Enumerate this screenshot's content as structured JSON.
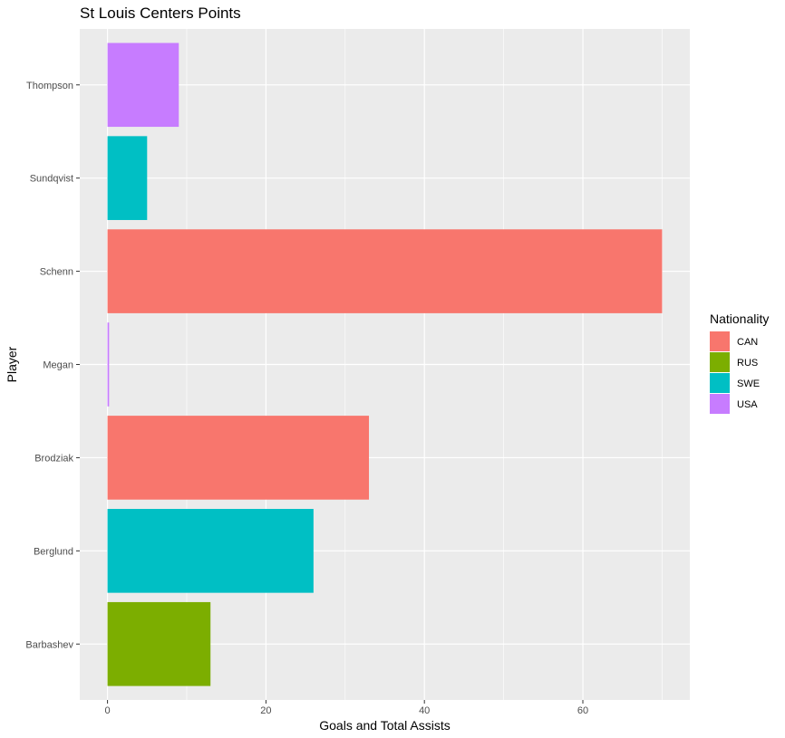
{
  "chart_data": {
    "type": "bar",
    "orientation": "horizontal",
    "title": "St Louis Centers Points",
    "xlabel": "Goals and Total Assists",
    "ylabel": "Player",
    "xlim": [
      -3.5,
      73.5
    ],
    "x_ticks": [
      0,
      20,
      40,
      60
    ],
    "grid": true,
    "legend_position": "right",
    "categories": [
      "Barbashev",
      "Berglund",
      "Brodziak",
      "Megan",
      "Schenn",
      "Sundqvist",
      "Thompson"
    ],
    "values": [
      13,
      26,
      33,
      0.2,
      70,
      5,
      9
    ],
    "groups": [
      "RUS",
      "SWE",
      "CAN",
      "USA",
      "CAN",
      "SWE",
      "USA"
    ],
    "legend": {
      "title": "Nationality",
      "entries": [
        {
          "label": "CAN",
          "color": "#F8766D"
        },
        {
          "label": "RUS",
          "color": "#7CAE00"
        },
        {
          "label": "SWE",
          "color": "#00BFC4"
        },
        {
          "label": "USA",
          "color": "#C77CFF"
        }
      ]
    },
    "colors": {
      "panel": "#EBEBEB",
      "grid": "#FFFFFF"
    }
  }
}
